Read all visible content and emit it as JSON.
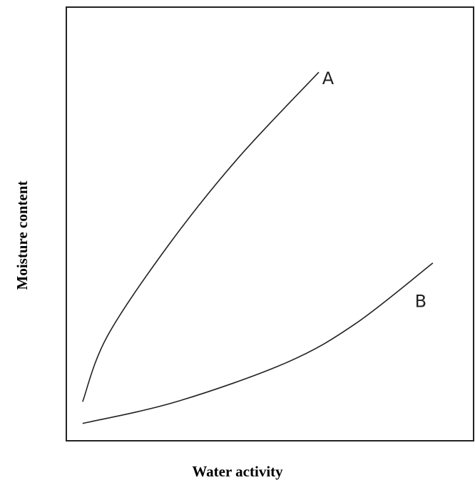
{
  "chart_data": {
    "type": "line",
    "x_label": "Water activity",
    "y_label": "Moisture content",
    "xlim": [
      0,
      1
    ],
    "ylim": [
      0,
      1
    ],
    "series": [
      {
        "name": "A",
        "color": "#222222",
        "x": [
          0.04,
          0.1,
          0.25,
          0.42,
          0.62
        ],
        "values": [
          0.09,
          0.24,
          0.45,
          0.65,
          0.85
        ]
      },
      {
        "name": "B",
        "color": "#222222",
        "x": [
          0.04,
          0.27,
          0.54,
          0.71,
          0.9
        ],
        "values": [
          0.04,
          0.09,
          0.18,
          0.27,
          0.41
        ]
      }
    ]
  }
}
